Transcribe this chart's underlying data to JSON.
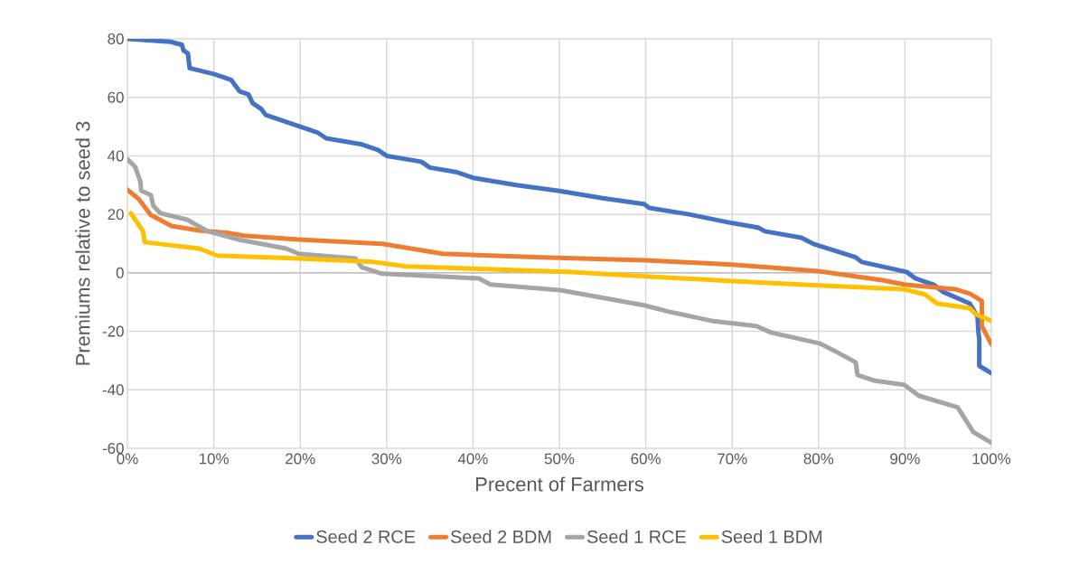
{
  "chart_data": {
    "type": "line",
    "xlabel": "Precent of Farmers",
    "ylabel": "Premiums relative to seed 3",
    "xlim": [
      0,
      100
    ],
    "ylim": [
      -60,
      80
    ],
    "xticks": [
      {
        "value": 0,
        "label": "0%"
      },
      {
        "value": 10,
        "label": "10%"
      },
      {
        "value": 20,
        "label": "20%"
      },
      {
        "value": 30,
        "label": "30%"
      },
      {
        "value": 40,
        "label": "40%"
      },
      {
        "value": 50,
        "label": "50%"
      },
      {
        "value": 60,
        "label": "60%"
      },
      {
        "value": 70,
        "label": "70%"
      },
      {
        "value": 80,
        "label": "80%"
      },
      {
        "value": 90,
        "label": "90%"
      },
      {
        "value": 100,
        "label": "100%"
      }
    ],
    "yticks": [
      -60,
      -40,
      -20,
      0,
      20,
      40,
      60,
      80
    ],
    "grid": true,
    "legend": "bottom",
    "series": [
      {
        "name": "Seed 2 RCE",
        "color": "#4472c4",
        "x": [
          0,
          5,
          6.3,
          6.5,
          7,
          7.2,
          10,
          12,
          13,
          14,
          14.5,
          15.5,
          16,
          20,
          22,
          23,
          27,
          29,
          30,
          34,
          35,
          38,
          40,
          45,
          50,
          55,
          59.8,
          60.4,
          65,
          70,
          73,
          73.8,
          78,
          79.4,
          84.3,
          85,
          90.2,
          91.2,
          93.3,
          94.4,
          97.5,
          98.4,
          98.5,
          98.6,
          98.6,
          100
        ],
        "values": [
          80,
          79,
          78,
          76,
          75,
          70,
          68,
          66,
          62,
          61,
          58,
          56,
          54,
          50,
          48,
          46,
          44,
          42,
          40,
          38,
          36,
          34.5,
          32.5,
          30,
          28,
          25.5,
          23.5,
          22.2,
          20,
          17,
          15.5,
          14.2,
          12,
          9.9,
          5.3,
          3.7,
          0.3,
          -1.9,
          -4,
          -6.5,
          -10.5,
          -15,
          -20.4,
          -22.5,
          -31.8,
          -34.3
        ]
      },
      {
        "name": "Seed 2 BDM",
        "color": "#ed7d31",
        "x": [
          0,
          1.3,
          2.7,
          5.1,
          8.3,
          11.7,
          13.5,
          19.8,
          29.5,
          36.5,
          48,
          60,
          70,
          80,
          87.4,
          89.9,
          95.8,
          97.5,
          98.9,
          98.9,
          100
        ],
        "values": [
          28.4,
          25.3,
          19.8,
          16,
          14.5,
          13.6,
          12.7,
          11.4,
          9.9,
          6.5,
          5.3,
          4.3,
          2.8,
          0.6,
          -2.5,
          -4,
          -5.6,
          -7.1,
          -9.6,
          -18.2,
          -24.4
        ]
      },
      {
        "name": "Seed 1 RCE",
        "color": "#a5a5a5",
        "x": [
          0,
          0.9,
          1.5,
          1.6,
          2.7,
          3,
          3.8,
          6.9,
          9.3,
          12.8,
          18.4,
          19.8,
          26.4,
          27.1,
          29.5,
          40.7,
          42,
          50.1,
          59.8,
          62.7,
          67.6,
          72.8,
          74.5,
          80.1,
          81.8,
          84.3,
          84.5,
          86.4,
          89.9,
          91.6,
          96.1,
          97.9,
          100
        ],
        "values": [
          38.9,
          36.2,
          31.2,
          28.1,
          26.6,
          22.9,
          20.4,
          18.2,
          14.2,
          11.4,
          8.3,
          6.5,
          4.9,
          1.9,
          -0.3,
          -1.9,
          -4,
          -5.9,
          -11.1,
          -13.3,
          -16.4,
          -18.2,
          -20.4,
          -24.1,
          -26.6,
          -30.6,
          -34.9,
          -36.8,
          -38.3,
          -42,
          -46,
          -54.4,
          -58.1
        ]
      },
      {
        "name": "Seed 1 BDM",
        "color": "#ffc000",
        "x": [
          0.4,
          1.8,
          2,
          8.3,
          10.4,
          19.8,
          28.5,
          32.3,
          51,
          60,
          70,
          80,
          89.9,
          92.3,
          93.7,
          97.5,
          98.2,
          100
        ],
        "values": [
          20.4,
          14.2,
          10.5,
          8.3,
          5.9,
          4.9,
          3.7,
          2.2,
          0.3,
          -1.2,
          -2.8,
          -4.3,
          -5.6,
          -7.4,
          -10.5,
          -12.1,
          -14.2,
          -16.4
        ]
      }
    ]
  }
}
